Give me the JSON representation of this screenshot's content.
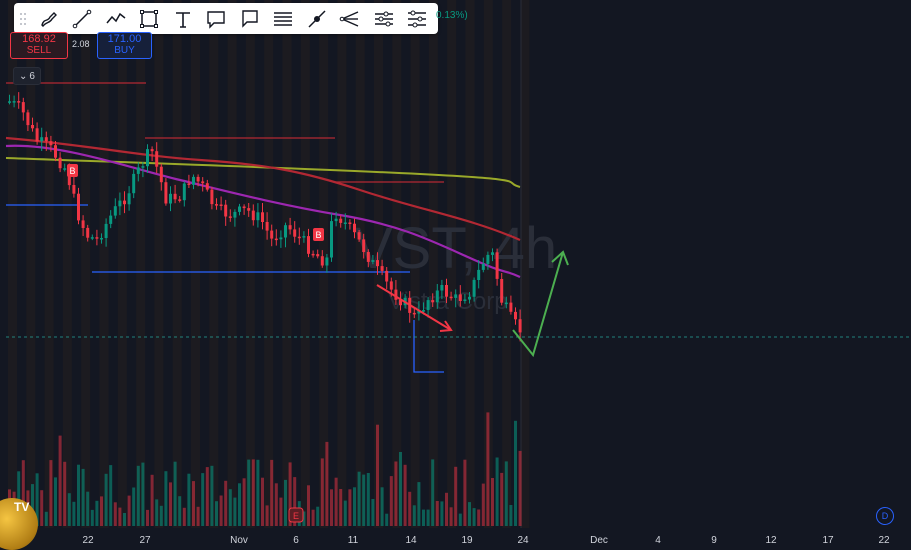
{
  "toolbar": {
    "tools": [
      "brush-icon",
      "trend-line-icon",
      "path-icon",
      "rectangle-icon",
      "text-icon",
      "callout-icon",
      "note-icon",
      "parallel-channel-icon",
      "ray-icon",
      "pitchfork-icon",
      "settings-list-icon",
      "filters-icon"
    ]
  },
  "percent_change": "0.13%)",
  "trade": {
    "sell_price": "168.92",
    "sell_label": "SELL",
    "spread": "2.08",
    "buy_price": "171.00",
    "buy_label": "BUY"
  },
  "indicators_count": "6",
  "watermark": {
    "symbol": "VST, 4h",
    "name": "Vistra Corp"
  },
  "x_axis_labels": [
    "22",
    "27",
    "Nov",
    "6",
    "11",
    "14",
    "19",
    "24",
    "Dec",
    "4",
    "9",
    "12",
    "17",
    "22"
  ],
  "earnings_marker": "E",
  "signal_label": "B",
  "d_badge": "D",
  "colors": {
    "background": "#131722",
    "up": "#089981",
    "down": "#f23645",
    "ma_purple": "#9c27b0",
    "ma_red": "#b22833",
    "ma_green": "#9aa92a",
    "projection": "#4caf50",
    "forecast_line": "#26a69a"
  }
}
